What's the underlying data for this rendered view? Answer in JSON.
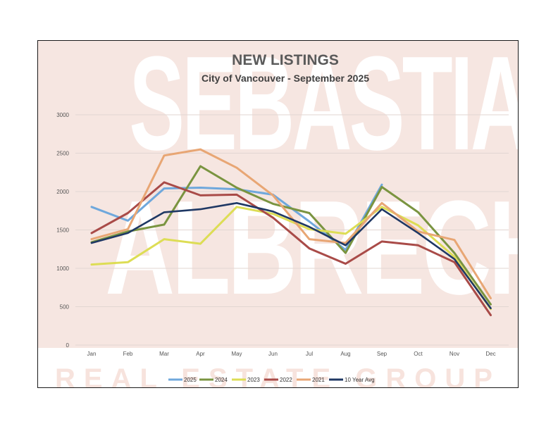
{
  "watermark": {
    "line1": "SEBASTIAN",
    "line2": "ALBRECHT",
    "line3": "REAL ESTATE GROUP"
  },
  "chart_data": {
    "type": "line",
    "title": "NEW LISTINGS",
    "subtitle": "City of Vancouver - September 2025",
    "categories": [
      "Jan",
      "Feb",
      "Mar",
      "Apr",
      "May",
      "Jun",
      "Jul",
      "Aug",
      "Sep",
      "Oct",
      "Nov",
      "Dec"
    ],
    "ylim": [
      0,
      3000
    ],
    "yticks": [
      0,
      500,
      1000,
      1500,
      2000,
      2500,
      3000
    ],
    "grid": true,
    "legend": "bottom",
    "series": [
      {
        "name": "2025",
        "color": "#6fa8dc",
        "values": [
          1800,
          1620,
          2040,
          2050,
          2030,
          1960,
          1610,
          1240,
          2090,
          null,
          null,
          null
        ]
      },
      {
        "name": "2024",
        "color": "#7a9440",
        "values": [
          1340,
          1480,
          1570,
          2330,
          2050,
          1840,
          1720,
          1200,
          2060,
          1730,
          1200,
          530
        ]
      },
      {
        "name": "2023",
        "color": "#dddd55",
        "values": [
          1050,
          1080,
          1380,
          1320,
          1800,
          1710,
          1510,
          1450,
          1800,
          1560,
          1150,
          470
        ]
      },
      {
        "name": "2022",
        "color": "#a94b48",
        "values": [
          1460,
          1720,
          2120,
          1950,
          1960,
          1660,
          1260,
          1060,
          1350,
          1300,
          1080,
          390
        ]
      },
      {
        "name": "2021",
        "color": "#e8a674",
        "values": [
          1380,
          1510,
          2470,
          2550,
          2310,
          1950,
          1380,
          1330,
          1850,
          1480,
          1370,
          610
        ]
      },
      {
        "name": "10 Year Avg",
        "color": "#1f3864",
        "values": [
          1330,
          1460,
          1730,
          1770,
          1850,
          1740,
          1540,
          1300,
          1770,
          1460,
          1120,
          480
        ]
      }
    ]
  }
}
